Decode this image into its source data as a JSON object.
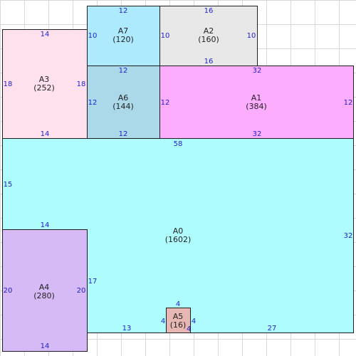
{
  "rooms": {
    "a0": {
      "label": "A0",
      "area": "(1602)",
      "color": "#aefcfd"
    },
    "a1": {
      "label": "A1",
      "area": "(384)",
      "color": "#fdadfd"
    },
    "a2": {
      "label": "A2",
      "area": "(160)",
      "color": "#e8e8e8"
    },
    "a3": {
      "label": "A3",
      "area": "(252)",
      "color": "#ffe1ee"
    },
    "a4": {
      "label": "A4",
      "area": "(280)",
      "color": "#d6baf6"
    },
    "a5": {
      "label": "A5",
      "area": "(16)",
      "color": "#e7b7b3"
    },
    "a6": {
      "label": "A6",
      "area": "(144)",
      "color": "#acd9e9"
    },
    "a7": {
      "label": "A7",
      "area": "(120)",
      "color": "#aeeafd"
    }
  },
  "dims": {
    "a7_top": "12",
    "a7_left": "10",
    "a7_right": "10",
    "a2_top": "16",
    "a2_left": "10",
    "a2_right": "10",
    "a2_bottom": "16",
    "a3_top": "14",
    "a3_left": "18",
    "a3_right": "18",
    "a3_bottom": "14",
    "a6_top": "12",
    "a6_left": "12",
    "a6_bottom": "12",
    "a1_top": "32",
    "a1_left": "12",
    "a1_right": "12",
    "a1_bottom": "32",
    "a0_top": "58",
    "a0_left": "15",
    "a0_right": "32",
    "a0_bottom_left": "13",
    "a0_bottom_right": "27",
    "a0_inner_step": "17",
    "a4_top": "14",
    "a4_left": "20",
    "a4_right": "20",
    "a4_bottom": "14",
    "a5_top": "4",
    "a5_left": "4",
    "a5_right": "4",
    "a5_bottom": "4"
  }
}
